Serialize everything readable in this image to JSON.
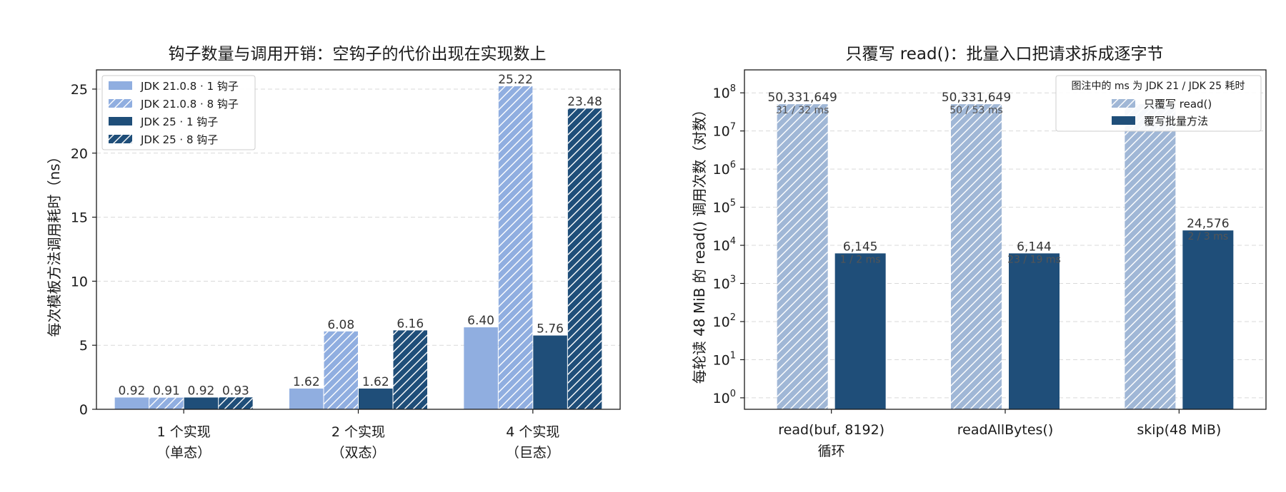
{
  "chart_data": [
    {
      "type": "bar",
      "title": "钩子数量与调用开销：空钩子的代价出现在实现数上",
      "ylabel": "每次模板方法调用耗时（ns）",
      "xlabel": "",
      "categories": [
        [
          "1 个实现",
          "（单态）"
        ],
        [
          "2 个实现",
          "（双态）"
        ],
        [
          "4 个实现",
          "（巨态）"
        ]
      ],
      "ylim": [
        0,
        26.5
      ],
      "yticks": [
        0,
        5,
        10,
        15,
        20,
        25
      ],
      "grid": true,
      "legend_position": "top-left",
      "series": [
        {
          "name": "JDK 21.0.8 · 1 钩子",
          "values": [
            0.92,
            1.62,
            6.4
          ],
          "labels": [
            "0.92",
            "1.62",
            "6.40"
          ],
          "color": "#90aee0",
          "hatch": false
        },
        {
          "name": "JDK 21.0.8 · 8 钩子",
          "values": [
            0.91,
            6.08,
            25.22
          ],
          "labels": [
            "0.91",
            "6.08",
            "25.22"
          ],
          "color": "#90aee0",
          "hatch": true
        },
        {
          "name": "JDK 25 · 1 钩子",
          "values": [
            0.92,
            1.62,
            5.76
          ],
          "labels": [
            "0.92",
            "1.62",
            "5.76"
          ],
          "color": "#1f4e79",
          "hatch": false
        },
        {
          "name": "JDK 25 · 8 钩子",
          "values": [
            0.93,
            6.16,
            23.48
          ],
          "labels": [
            "0.93",
            "6.16",
            "23.48"
          ],
          "color": "#1f4e79",
          "hatch": true
        }
      ]
    },
    {
      "type": "bar",
      "title": "只覆写 read()：批量入口把请求拆成逐字节",
      "ylabel": "每轮读 48 MiB 的 read() 调用次数（对数）",
      "xlabel": "",
      "yscale": "log",
      "categories": [
        [
          "read(buf, 8192)",
          "循环"
        ],
        [
          "readAllBytes()"
        ],
        [
          "skip(48 MiB)"
        ]
      ],
      "ylim": [
        0.5,
        400000000
      ],
      "yticks": [
        {
          "base": "10",
          "exp": "0"
        },
        {
          "base": "10",
          "exp": "1"
        },
        {
          "base": "10",
          "exp": "2"
        },
        {
          "base": "10",
          "exp": "3"
        },
        {
          "base": "10",
          "exp": "4"
        },
        {
          "base": "10",
          "exp": "5"
        },
        {
          "base": "10",
          "exp": "6"
        },
        {
          "base": "10",
          "exp": "7"
        },
        {
          "base": "10",
          "exp": "8"
        }
      ],
      "grid": true,
      "legend_title": "图注中的 ms 为 JDK 21 / JDK 25 耗时",
      "legend_position": "top-right",
      "series": [
        {
          "name": "只覆写 read()",
          "values": [
            50331649,
            50331649,
            50331649
          ],
          "labels": [
            "50,331,649",
            "50,331,649",
            ""
          ],
          "ms": [
            "31 / 32 ms",
            "50 / 53 ms",
            ""
          ],
          "color": "#a0b7d6",
          "hatch": true
        },
        {
          "name": "覆写批量方法",
          "values": [
            6145,
            6144,
            24576
          ],
          "labels": [
            "6,145",
            "6,144",
            "24,576"
          ],
          "ms": [
            "1 / 2 ms",
            "23 / 19 ms",
            "2 / 3 ms"
          ],
          "color": "#1f4e79",
          "hatch": false
        }
      ]
    }
  ]
}
